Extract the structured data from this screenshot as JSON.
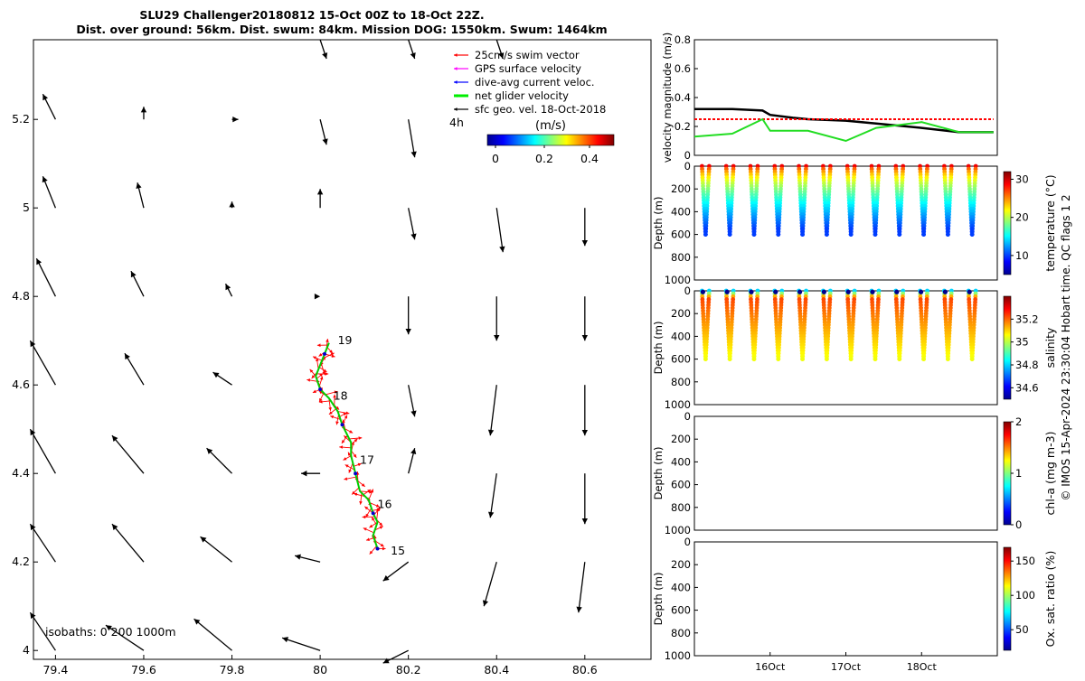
{
  "title": {
    "line1": "SLU29 Challenger20180812 15-Oct 00Z to 18-Oct 22Z.",
    "line2": "Dist. over ground: 56km. Dist. swum: 84km. Mission DOG: 1550km. Swum: 1464km"
  },
  "credit": "© IMOS 15-Apr-2024 23:30:04 Hobart time. QC flags 1  2",
  "map": {
    "xticks": [
      79.4,
      79.6,
      79.8,
      80,
      80.2,
      80.4,
      80.6
    ],
    "yticks": [
      4,
      4.2,
      4.4,
      4.6,
      4.8,
      5,
      5.2
    ],
    "xlim": [
      79.35,
      80.75
    ],
    "ylim": [
      3.98,
      5.38
    ],
    "isobaths_label": "isobaths: 0   200  1000m",
    "track_day_labels": [
      {
        "text": "15",
        "lon": 80.16,
        "lat": 4.225
      },
      {
        "text": "16",
        "lon": 80.13,
        "lat": 4.33
      },
      {
        "text": "17",
        "lon": 80.09,
        "lat": 4.43
      },
      {
        "text": "18",
        "lon": 80.03,
        "lat": 4.575
      },
      {
        "text": "19",
        "lon": 80.04,
        "lat": 4.7
      }
    ],
    "legend": {
      "items": [
        {
          "label": "25cm/s swim vector",
          "color": "#ff0000"
        },
        {
          "label": "GPS surface velocity",
          "color": "#ff00ff"
        },
        {
          "label": "dive-avg current veloc.",
          "color": "#0000ff"
        },
        {
          "label": "net glider velocity",
          "color": "#00ee00"
        },
        {
          "label": "sfc geo. vel. 18-Oct-2018",
          "color": "#000000"
        }
      ],
      "note": "4h",
      "colorbar_title": "(m/s)",
      "colorbar_ticks": [
        "0",
        "0.2",
        "0.4"
      ]
    }
  },
  "right_panels": {
    "time_ticks": [
      "16Oct",
      "17Oct",
      "18Oct"
    ],
    "velocity": {
      "ylabel": "velocity magnitude (m/s)",
      "yticks": [
        "0",
        "0.2",
        "0.4",
        "0.6",
        "0.8"
      ]
    },
    "depth_yticks": [
      "0",
      "200",
      "400",
      "600",
      "800",
      "1000"
    ],
    "depth_ylabel": "Depth (m)",
    "temperature": {
      "cbar_label": "temperature (°C)",
      "cbar_ticks": [
        "10",
        "20",
        "30"
      ]
    },
    "salinity": {
      "cbar_label": "salinity",
      "cbar_ticks": [
        "34.6",
        "34.8",
        "35",
        "35.2"
      ]
    },
    "chla": {
      "cbar_label": "chl-a (mg m-3)",
      "cbar_ticks": [
        "0",
        "1",
        "2"
      ]
    },
    "oxygen": {
      "cbar_label": "Ox. sat. ratio (%)",
      "cbar_ticks": [
        "50",
        "100",
        "150"
      ]
    }
  },
  "chart_data": [
    {
      "type": "scatter",
      "description_of_marks": "glider track and surface geostrophic velocity arrows",
      "xlim": [
        79.35,
        80.75
      ],
      "ylim": [
        3.98,
        5.38
      ],
      "track": {
        "lon": [
          80.13,
          80.12,
          80.13,
          80.12,
          80.11,
          80.09,
          80.08,
          80.07,
          80.07,
          80.05,
          80.04,
          80.02,
          80.0,
          79.99,
          80.0,
          80.01,
          80.02
        ],
        "lat": [
          4.23,
          4.26,
          4.29,
          4.31,
          4.34,
          4.36,
          4.4,
          4.44,
          4.47,
          4.51,
          4.54,
          4.57,
          4.59,
          4.62,
          4.645,
          4.67,
          4.695
        ]
      },
      "vectors": [
        {
          "lon": 79.4,
          "lat": 4.0,
          "u": -0.04,
          "v": 0.06
        },
        {
          "lon": 79.6,
          "lat": 4.0,
          "u": -0.06,
          "v": 0.04
        },
        {
          "lon": 79.8,
          "lat": 4.0,
          "u": -0.06,
          "v": 0.05
        },
        {
          "lon": 80.0,
          "lat": 4.0,
          "u": -0.06,
          "v": 0.02
        },
        {
          "lon": 80.2,
          "lat": 4.0,
          "u": -0.04,
          "v": -0.02
        },
        {
          "lon": 79.4,
          "lat": 4.2,
          "u": -0.04,
          "v": 0.06
        },
        {
          "lon": 79.6,
          "lat": 4.2,
          "u": -0.05,
          "v": 0.06
        },
        {
          "lon": 79.8,
          "lat": 4.2,
          "u": -0.05,
          "v": 0.04
        },
        {
          "lon": 80.0,
          "lat": 4.2,
          "u": -0.04,
          "v": 0.01
        },
        {
          "lon": 80.2,
          "lat": 4.2,
          "u": -0.04,
          "v": -0.03
        },
        {
          "lon": 80.4,
          "lat": 4.2,
          "u": -0.02,
          "v": -0.07
        },
        {
          "lon": 80.6,
          "lat": 4.2,
          "u": -0.01,
          "v": -0.08
        },
        {
          "lon": 79.4,
          "lat": 4.4,
          "u": -0.04,
          "v": 0.07
        },
        {
          "lon": 79.6,
          "lat": 4.4,
          "u": -0.05,
          "v": 0.06
        },
        {
          "lon": 79.8,
          "lat": 4.4,
          "u": -0.04,
          "v": 0.04
        },
        {
          "lon": 80.0,
          "lat": 4.4,
          "u": -0.03,
          "v": 0.0
        },
        {
          "lon": 80.2,
          "lat": 4.4,
          "u": 0.01,
          "v": 0.04
        },
        {
          "lon": 80.4,
          "lat": 4.4,
          "u": -0.01,
          "v": -0.07
        },
        {
          "lon": 80.6,
          "lat": 4.4,
          "u": -0.0,
          "v": -0.08
        },
        {
          "lon": 79.4,
          "lat": 4.6,
          "u": -0.04,
          "v": 0.07
        },
        {
          "lon": 79.6,
          "lat": 4.6,
          "u": -0.03,
          "v": 0.05
        },
        {
          "lon": 79.8,
          "lat": 4.6,
          "u": -0.03,
          "v": 0.02
        },
        {
          "lon": 80.2,
          "lat": 4.6,
          "u": 0.01,
          "v": -0.05
        },
        {
          "lon": 80.4,
          "lat": 4.6,
          "u": -0.01,
          "v": -0.08
        },
        {
          "lon": 80.6,
          "lat": 4.6,
          "u": -0.0,
          "v": -0.08
        },
        {
          "lon": 79.4,
          "lat": 4.8,
          "u": -0.03,
          "v": 0.06
        },
        {
          "lon": 79.6,
          "lat": 4.8,
          "u": -0.02,
          "v": 0.04
        },
        {
          "lon": 79.8,
          "lat": 4.8,
          "u": -0.01,
          "v": 0.02
        },
        {
          "lon": 80.0,
          "lat": 4.8,
          "u": -0.0,
          "v": 0.0
        },
        {
          "lon": 80.2,
          "lat": 4.8,
          "u": -0.0,
          "v": -0.06
        },
        {
          "lon": 80.4,
          "lat": 4.8,
          "u": -0.0,
          "v": -0.07
        },
        {
          "lon": 80.6,
          "lat": 4.8,
          "u": -0.0,
          "v": -0.07
        },
        {
          "lon": 79.4,
          "lat": 5.0,
          "u": -0.02,
          "v": 0.05
        },
        {
          "lon": 79.6,
          "lat": 5.0,
          "u": -0.01,
          "v": 0.04
        },
        {
          "lon": 79.8,
          "lat": 5.0,
          "u": -0.0,
          "v": 0.01
        },
        {
          "lon": 80.0,
          "lat": 5.0,
          "u": 0.0,
          "v": 0.03
        },
        {
          "lon": 80.2,
          "lat": 5.0,
          "u": 0.01,
          "v": -0.05
        },
        {
          "lon": 80.4,
          "lat": 5.0,
          "u": 0.01,
          "v": -0.07
        },
        {
          "lon": 80.6,
          "lat": 5.0,
          "u": 0.0,
          "v": -0.06
        },
        {
          "lon": 79.4,
          "lat": 5.2,
          "u": -0.02,
          "v": 0.04
        },
        {
          "lon": 79.6,
          "lat": 5.2,
          "u": -0.0,
          "v": 0.02
        },
        {
          "lon": 79.8,
          "lat": 5.2,
          "u": 0.01,
          "v": 0.0
        },
        {
          "lon": 80.0,
          "lat": 5.2,
          "u": 0.01,
          "v": -0.04
        },
        {
          "lon": 80.2,
          "lat": 5.2,
          "u": 0.01,
          "v": -0.06
        },
        {
          "lon": 80.4,
          "lat": 5.38,
          "u": 0.01,
          "v": -0.03
        },
        {
          "lon": 80.2,
          "lat": 5.38,
          "u": 0.01,
          "v": -0.03
        },
        {
          "lon": 80.0,
          "lat": 5.38,
          "u": 0.01,
          "v": -0.03
        }
      ]
    },
    {
      "type": "line",
      "ylabel": "velocity magnitude (m/s)",
      "ylim": [
        0,
        0.8
      ],
      "x_days": [
        15.0,
        15.5,
        15.9,
        16.0,
        16.3,
        16.5,
        17.0,
        17.4,
        18.0,
        18.5,
        18.95
      ],
      "series": [
        {
          "color": "#000000",
          "values": [
            0.32,
            0.32,
            0.31,
            0.28,
            0.26,
            0.25,
            0.24,
            0.22,
            0.19,
            0.16,
            0.16
          ]
        },
        {
          "color": "#ff0000",
          "values": [
            0.25,
            0.25,
            0.25,
            0.25,
            0.25,
            0.25,
            0.25,
            0.25,
            0.25,
            0.25,
            0.25
          ]
        },
        {
          "color": "#22dd22",
          "values": [
            0.13,
            0.15,
            0.25,
            0.17,
            0.17,
            0.17,
            0.1,
            0.19,
            0.23,
            0.16,
            0.16
          ]
        }
      ]
    },
    {
      "type": "scatter",
      "ylabel": "Depth (m)",
      "variable": "temperature",
      "ylim": [
        1000,
        0
      ],
      "profile_max_depth": 600,
      "cbar_range": [
        5,
        32
      ]
    },
    {
      "type": "scatter",
      "ylabel": "Depth (m)",
      "variable": "salinity",
      "ylim": [
        1000,
        0
      ],
      "profile_max_depth": 600,
      "cbar_range": [
        34.5,
        35.4
      ]
    }
  ]
}
